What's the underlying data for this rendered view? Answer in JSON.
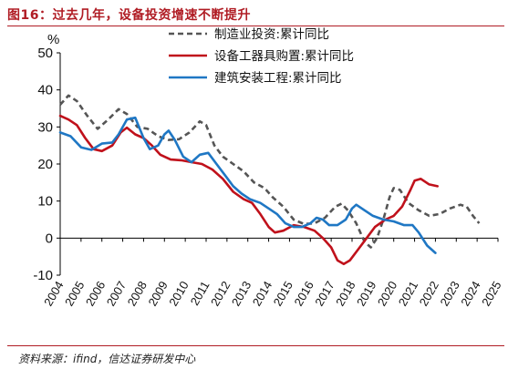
{
  "figure": {
    "title": "图16：过去几年，设备投资增速不断提升",
    "source": "资料来源：ifind，信达证券研发中心"
  },
  "chart_data": {
    "type": "line",
    "ylabel": "%",
    "ylim": [
      -10,
      50
    ],
    "yticks": [
      -10,
      0,
      10,
      20,
      30,
      40,
      50
    ],
    "x_start": 2004,
    "x_end": 2025,
    "categories": [
      "2004",
      "2005",
      "2006",
      "2007",
      "2008",
      "2009",
      "2010",
      "2011",
      "2012",
      "2013",
      "2014",
      "2015",
      "2016",
      "2017",
      "2018",
      "2019",
      "2020",
      "2021",
      "2022",
      "2023",
      "2024",
      "2025"
    ],
    "legend_position": "top-center",
    "series": [
      {
        "name": "制造业投资:累计同比",
        "color": "#555555",
        "style": "dashed",
        "points": [
          [
            2004.0,
            36
          ],
          [
            2004.4,
            38.5
          ],
          [
            2004.8,
            37
          ],
          [
            2005.3,
            33
          ],
          [
            2005.8,
            29.5
          ],
          [
            2006.3,
            32
          ],
          [
            2006.8,
            34.8
          ],
          [
            2007.2,
            33.5
          ],
          [
            2007.7,
            30
          ],
          [
            2008.2,
            29.5
          ],
          [
            2008.7,
            27.5
          ],
          [
            2009.2,
            26.5
          ],
          [
            2009.7,
            26.7
          ],
          [
            2010.2,
            28.5
          ],
          [
            2010.7,
            31.5
          ],
          [
            2011.0,
            30.5
          ],
          [
            2011.4,
            25
          ],
          [
            2011.8,
            22
          ],
          [
            2012.3,
            20
          ],
          [
            2012.8,
            18
          ],
          [
            2013.3,
            15
          ],
          [
            2013.8,
            13.5
          ],
          [
            2014.2,
            11
          ],
          [
            2014.7,
            8.5
          ],
          [
            2015.2,
            5
          ],
          [
            2015.7,
            3.8
          ],
          [
            2016.2,
            4
          ],
          [
            2016.7,
            5.5
          ],
          [
            2017.2,
            8.5
          ],
          [
            2017.5,
            9.3
          ],
          [
            2017.8,
            7.5
          ],
          [
            2018.2,
            4
          ],
          [
            2018.6,
            -1
          ],
          [
            2018.9,
            -2.5
          ],
          [
            2019.2,
            0
          ],
          [
            2019.5,
            5
          ],
          [
            2019.8,
            11
          ],
          [
            2020.0,
            13.5
          ],
          [
            2020.3,
            13
          ],
          [
            2020.7,
            9.5
          ],
          [
            2021.2,
            7.5
          ],
          [
            2021.7,
            6
          ],
          [
            2022.2,
            6.5
          ],
          [
            2022.7,
            8
          ],
          [
            2023.2,
            9
          ],
          [
            2023.5,
            8.5
          ],
          [
            2023.8,
            6
          ],
          [
            2024.1,
            4
          ]
        ]
      },
      {
        "name": "设备工器具购置:累计同比",
        "color": "#c0111b",
        "style": "solid",
        "points": [
          [
            2004.0,
            33
          ],
          [
            2004.4,
            32
          ],
          [
            2004.8,
            30.5
          ],
          [
            2005.2,
            27
          ],
          [
            2005.6,
            24
          ],
          [
            2006.0,
            23.5
          ],
          [
            2006.5,
            25
          ],
          [
            2006.9,
            28.5
          ],
          [
            2007.2,
            29.8
          ],
          [
            2007.6,
            28
          ],
          [
            2008.0,
            27
          ],
          [
            2008.4,
            25
          ],
          [
            2008.8,
            22.5
          ],
          [
            2009.3,
            21.2
          ],
          [
            2009.8,
            21
          ],
          [
            2010.3,
            20.5
          ],
          [
            2010.8,
            20
          ],
          [
            2011.3,
            18.5
          ],
          [
            2011.8,
            16
          ],
          [
            2012.3,
            12.5
          ],
          [
            2012.8,
            10.5
          ],
          [
            2013.2,
            9.5
          ],
          [
            2013.6,
            6.5
          ],
          [
            2014.0,
            3
          ],
          [
            2014.3,
            1.5
          ],
          [
            2014.7,
            2
          ],
          [
            2015.2,
            3.5
          ],
          [
            2015.7,
            3
          ],
          [
            2016.2,
            2
          ],
          [
            2016.6,
            0
          ],
          [
            2017.0,
            -2.5
          ],
          [
            2017.3,
            -6
          ],
          [
            2017.6,
            -7
          ],
          [
            2017.9,
            -6
          ],
          [
            2018.3,
            -3
          ],
          [
            2018.7,
            0
          ],
          [
            2019.1,
            3
          ],
          [
            2019.6,
            5
          ],
          [
            2020.0,
            6
          ],
          [
            2020.4,
            8.5
          ],
          [
            2020.8,
            13
          ],
          [
            2021.0,
            15.5
          ],
          [
            2021.3,
            16
          ],
          [
            2021.7,
            14.5
          ],
          [
            2022.1,
            14
          ]
        ]
      },
      {
        "name": "建筑安装工程:累计同比",
        "color": "#1f77c4",
        "style": "solid",
        "points": [
          [
            2004.0,
            28.5
          ],
          [
            2004.5,
            27.5
          ],
          [
            2005.0,
            24.5
          ],
          [
            2005.5,
            23.8
          ],
          [
            2006.0,
            25.5
          ],
          [
            2006.5,
            25.8
          ],
          [
            2006.8,
            28
          ],
          [
            2007.2,
            32
          ],
          [
            2007.6,
            32.5
          ],
          [
            2008.0,
            27
          ],
          [
            2008.3,
            24
          ],
          [
            2008.7,
            25
          ],
          [
            2009.0,
            28
          ],
          [
            2009.2,
            29
          ],
          [
            2009.5,
            26.5
          ],
          [
            2009.9,
            22
          ],
          [
            2010.3,
            20.5
          ],
          [
            2010.7,
            22.5
          ],
          [
            2011.1,
            23
          ],
          [
            2011.5,
            20
          ],
          [
            2011.9,
            17
          ],
          [
            2012.3,
            14
          ],
          [
            2012.7,
            12
          ],
          [
            2013.1,
            10.5
          ],
          [
            2013.6,
            9.5
          ],
          [
            2014.0,
            8
          ],
          [
            2014.4,
            6.5
          ],
          [
            2014.8,
            4
          ],
          [
            2015.2,
            3
          ],
          [
            2015.6,
            3
          ],
          [
            2016.0,
            4
          ],
          [
            2016.3,
            5.5
          ],
          [
            2016.6,
            5
          ],
          [
            2016.9,
            3.5
          ],
          [
            2017.3,
            3.5
          ],
          [
            2017.7,
            5
          ],
          [
            2018.0,
            8
          ],
          [
            2018.2,
            9
          ],
          [
            2018.6,
            7.5
          ],
          [
            2019.0,
            6
          ],
          [
            2019.5,
            5
          ],
          [
            2020.0,
            4.5
          ],
          [
            2020.5,
            3.5
          ],
          [
            2020.9,
            3.5
          ],
          [
            2021.2,
            1.5
          ],
          [
            2021.6,
            -2
          ],
          [
            2022.0,
            -4
          ]
        ]
      }
    ]
  }
}
